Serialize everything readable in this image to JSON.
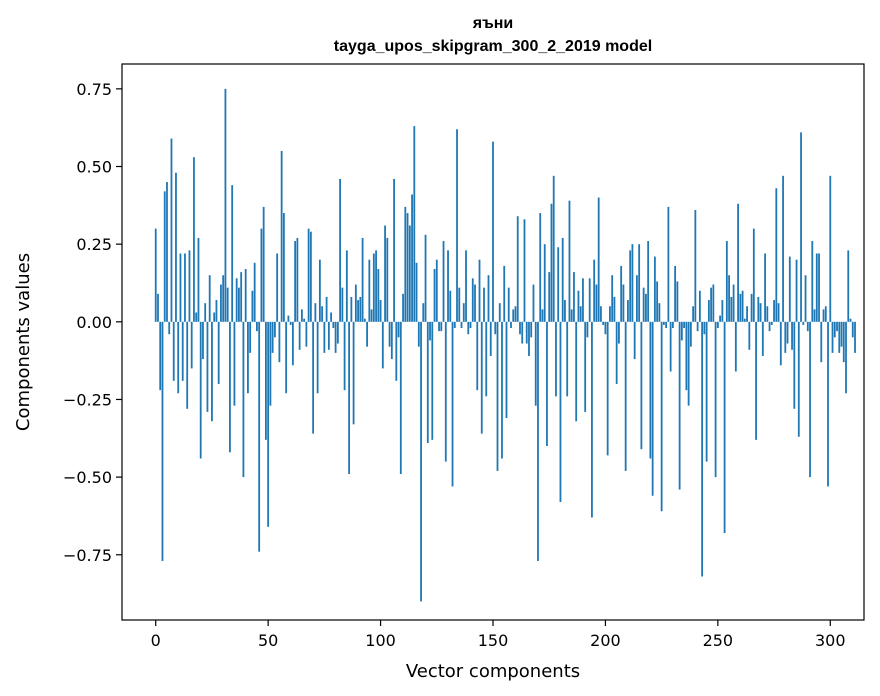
{
  "chart_data": {
    "type": "bar",
    "title_line1": "яъни",
    "title_line2": "tayga_upos_skipgram_300_2_2019 model",
    "xlabel": "Vector components",
    "ylabel": "Components values",
    "xlim": [
      -15,
      315
    ],
    "ylim": [
      -0.96,
      0.83
    ],
    "x_ticks": [
      0,
      50,
      100,
      150,
      200,
      250,
      300
    ],
    "x_tick_labels": [
      "0",
      "50",
      "100",
      "150",
      "200",
      "250",
      "300"
    ],
    "y_ticks": [
      0.75,
      0.5,
      0.25,
      0.0,
      -0.25,
      -0.5,
      -0.75
    ],
    "y_tick_labels": [
      "0.75",
      "0.50",
      "0.25",
      "0.00",
      "−0.25",
      "−0.50",
      "−0.75"
    ],
    "bar_color": "#1f77b4",
    "values": [
      0.3,
      0.09,
      -0.22,
      -0.77,
      0.42,
      0.45,
      -0.04,
      0.59,
      -0.19,
      0.48,
      -0.23,
      0.22,
      -0.19,
      0.22,
      -0.28,
      0.23,
      -0.15,
      0.53,
      0.03,
      0.27,
      -0.44,
      -0.12,
      0.06,
      -0.29,
      0.15,
      -0.32,
      0.03,
      0.07,
      -0.2,
      0.12,
      0.15,
      0.75,
      0.11,
      -0.42,
      0.44,
      -0.27,
      0.14,
      0.11,
      0.16,
      -0.5,
      0.17,
      -0.23,
      -0.1,
      0.1,
      0.19,
      -0.03,
      -0.74,
      0.3,
      0.37,
      -0.38,
      -0.66,
      -0.27,
      -0.1,
      -0.05,
      0.22,
      -0.13,
      0.55,
      0.35,
      -0.23,
      0.02,
      -0.01,
      -0.14,
      0.26,
      0.27,
      -0.09,
      0.04,
      0.01,
      -0.08,
      0.3,
      0.29,
      -0.36,
      0.06,
      -0.23,
      0.2,
      0.05,
      -0.1,
      0.08,
      -0.09,
      0.03,
      -0.02,
      -0.1,
      -0.07,
      0.46,
      0.11,
      -0.22,
      0.23,
      -0.49,
      0.08,
      -0.33,
      0.12,
      0.07,
      0.08,
      0.27,
      0.01,
      -0.08,
      0.2,
      0.04,
      0.22,
      0.23,
      0.17,
      0.07,
      -0.15,
      0.31,
      0.27,
      -0.08,
      -0.12,
      0.46,
      -0.19,
      -0.05,
      -0.49,
      0.09,
      0.37,
      0.35,
      0.31,
      0.41,
      0.63,
      0.19,
      -0.08,
      -0.9,
      0.06,
      0.28,
      -0.39,
      -0.06,
      -0.38,
      0.17,
      0.2,
      -0.03,
      -0.03,
      0.26,
      -0.45,
      0.23,
      0.1,
      -0.53,
      -0.02,
      0.62,
      0.11,
      -0.02,
      0.06,
      0.23,
      -0.04,
      -0.02,
      0.14,
      0.12,
      -0.22,
      0.2,
      -0.36,
      0.11,
      -0.24,
      0.15,
      -0.11,
      0.58,
      -0.04,
      -0.48,
      0.06,
      -0.44,
      0.18,
      -0.31,
      0.11,
      -0.02,
      0.04,
      0.05,
      0.34,
      -0.04,
      -0.07,
      0.33,
      -0.07,
      -0.11,
      -0.05,
      0.12,
      -0.27,
      -0.77,
      0.35,
      0.04,
      0.25,
      -0.4,
      0.16,
      0.38,
      0.47,
      -0.24,
      0.24,
      -0.58,
      0.27,
      0.07,
      -0.24,
      0.39,
      0.04,
      0.16,
      -0.32,
      0.1,
      0.05,
      0.14,
      -0.29,
      -0.05,
      0.14,
      -0.63,
      0.2,
      0.12,
      0.4,
      0.05,
      -0.01,
      -0.04,
      -0.43,
      0.05,
      0.15,
      0.08,
      -0.2,
      -0.07,
      0.18,
      0.12,
      -0.48,
      0.07,
      0.23,
      0.25,
      -0.12,
      0.15,
      0.25,
      -0.41,
      0.11,
      0.09,
      0.26,
      -0.44,
      -0.56,
      0.21,
      0.13,
      0.06,
      -0.61,
      -0.01,
      -0.02,
      0.37,
      -0.16,
      -0.02,
      0.18,
      0.13,
      -0.54,
      -0.06,
      -0.02,
      -0.22,
      -0.27,
      -0.08,
      0.05,
      0.36,
      -0.03,
      0.1,
      -0.82,
      -0.04,
      -0.45,
      0.07,
      0.11,
      0.12,
      -0.5,
      -0.02,
      0.02,
      0.07,
      -0.68,
      0.26,
      0.15,
      0.08,
      0.12,
      -0.16,
      0.38,
      0.09,
      0.1,
      0.01,
      0.05,
      -0.09,
      0.09,
      0.3,
      -0.38,
      0.08,
      0.06,
      -0.11,
      0.22,
      0.05,
      -0.03,
      -0.01,
      0.07,
      0.43,
      0.06,
      -0.14,
      0.47,
      -0.1,
      -0.07,
      0.21,
      -0.09,
      -0.28,
      0.2,
      -0.37,
      0.61,
      -0.01,
      0.15,
      -0.03,
      -0.5,
      0.26,
      0.04,
      0.22,
      0.22,
      -0.13,
      0.04,
      0.05,
      -0.53,
      0.47,
      -0.1,
      -0.05,
      -0.03,
      -0.1,
      -0.08,
      -0.13,
      -0.23,
      0.23,
      0.01,
      -0.05,
      -0.1
    ]
  }
}
